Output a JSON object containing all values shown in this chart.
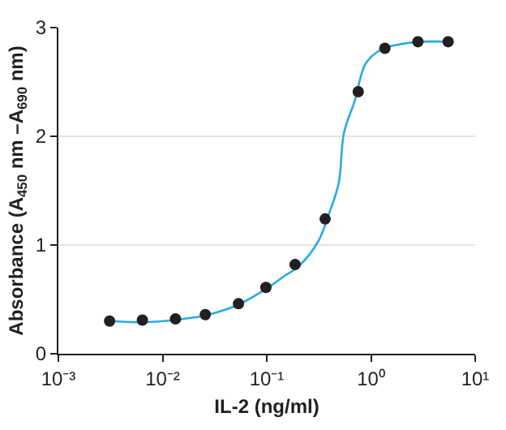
{
  "chart_data": {
    "type": "scatter",
    "xlabel": "IL-2 (ng/ml)",
    "ylabel": "Absorbance (A$_{450}$ nm –A$_{690}$ nm)",
    "log": "x",
    "grid": "y",
    "marker": "circle",
    "xlim": [
      0.001,
      10
    ],
    "ylim": [
      0,
      3
    ],
    "xticks": [
      {
        "value": 0.001,
        "label": "10⁻³"
      },
      {
        "value": 0.01,
        "label": "10⁻²"
      },
      {
        "value": 0.1,
        "label": "10⁻¹"
      },
      {
        "value": 1,
        "label": "10⁰"
      },
      {
        "value": 10,
        "label": "10¹"
      }
    ],
    "yticks": [
      0,
      1,
      2,
      3
    ],
    "series": [
      {
        "type": "line",
        "color": "#29abe2",
        "line_style": "solid",
        "marker": "none",
        "x": [
          0.0031,
          0.006,
          0.013,
          0.025,
          0.05,
          0.1,
          0.15,
          0.2,
          0.31,
          0.4,
          0.49,
          0.55,
          0.7,
          0.89,
          1.26,
          2,
          3,
          5.5
        ],
        "values": [
          0.3,
          0.29,
          0.31,
          0.35,
          0.44,
          0.6,
          0.72,
          0.8,
          1.03,
          1.3,
          1.57,
          2.03,
          2.33,
          2.67,
          2.8,
          2.85,
          2.87,
          2.87
        ]
      },
      {
        "color": "#231f20",
        "x": [
          0.0031,
          0.0064,
          0.0133,
          0.0257,
          0.0535,
          0.098,
          0.187,
          0.363,
          0.754,
          1.36,
          2.82,
          5.5
        ],
        "values": [
          0.3,
          0.31,
          0.32,
          0.36,
          0.46,
          0.61,
          0.82,
          1.24,
          2.41,
          2.81,
          2.87,
          2.87
        ]
      }
    ]
  }
}
